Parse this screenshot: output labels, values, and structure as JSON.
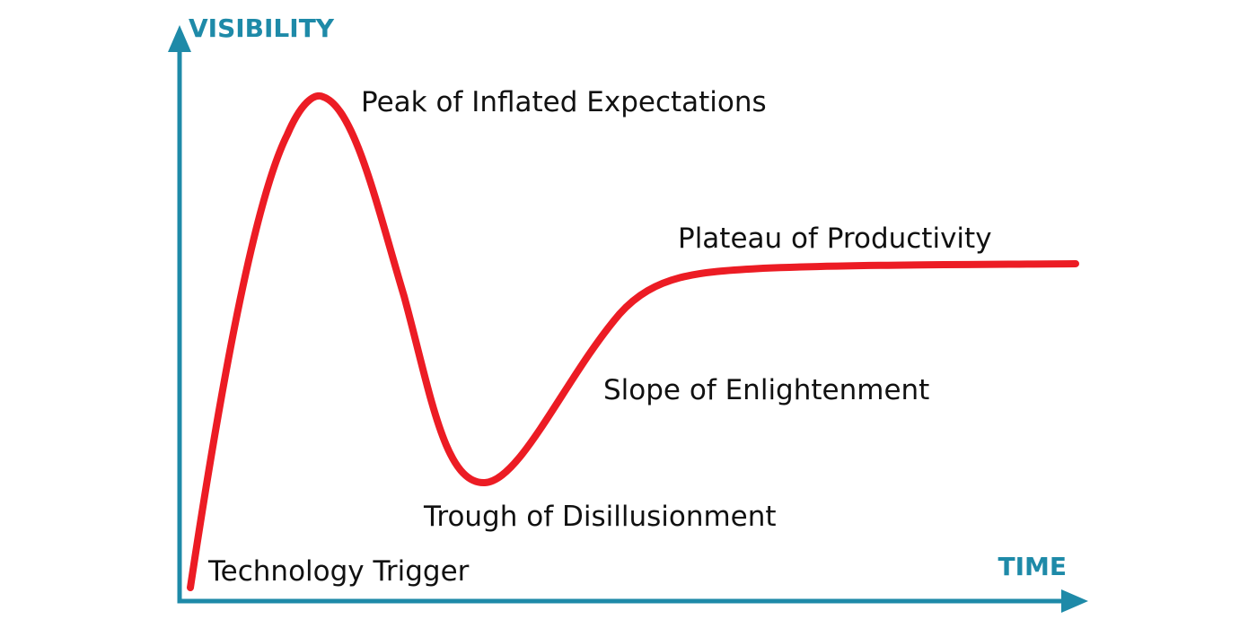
{
  "colors": {
    "axis": "#1e8aa8",
    "curve": "#ec1c24",
    "label": "#111111"
  },
  "axes": {
    "y_label": "VISIBILITY",
    "x_label": "TIME"
  },
  "phases": {
    "technology_trigger": "Technology Trigger",
    "peak": "Peak of Inflated Expectations",
    "trough": "Trough of Disillusionment",
    "slope": "Slope of Enlightenment",
    "plateau": "Plateau of Productivity"
  }
}
